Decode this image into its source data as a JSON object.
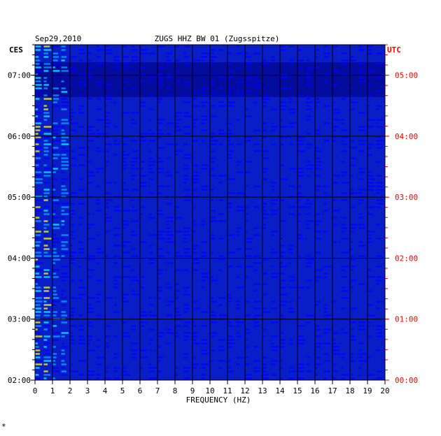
{
  "chart_data": {
    "type": "heatmap",
    "date": "Sep29,2010",
    "title": "ZUGS HHZ BW 01 (Zugsspitze)",
    "xlabel": "FREQUENCY (HZ)",
    "xlim": [
      0,
      20
    ],
    "x_ticks": [
      0,
      1,
      2,
      3,
      4,
      5,
      6,
      7,
      8,
      9,
      10,
      11,
      12,
      13,
      14,
      15,
      16,
      17,
      18,
      19,
      20
    ],
    "left_axis_label": "CES",
    "right_axis_label": "UTC",
    "left_ticks": [
      "02:00",
      "03:00",
      "04:00",
      "05:00",
      "06:00",
      "07:00"
    ],
    "right_ticks": [
      "00:00",
      "01:00",
      "02:00",
      "03:00",
      "04:00",
      "05:00"
    ],
    "time_range_hours": [
      2.0,
      7.5
    ],
    "colormap": [
      "#000080",
      "#0000ff",
      "#00aaff",
      "#00ffff",
      "#ffff00",
      "#ff8000",
      "#ff0000"
    ],
    "colors": {
      "background": "#0a1ec8",
      "left_axis": "#000000",
      "right_axis": "#ff0000",
      "grid": "#000000"
    },
    "corner_mark": "*"
  }
}
